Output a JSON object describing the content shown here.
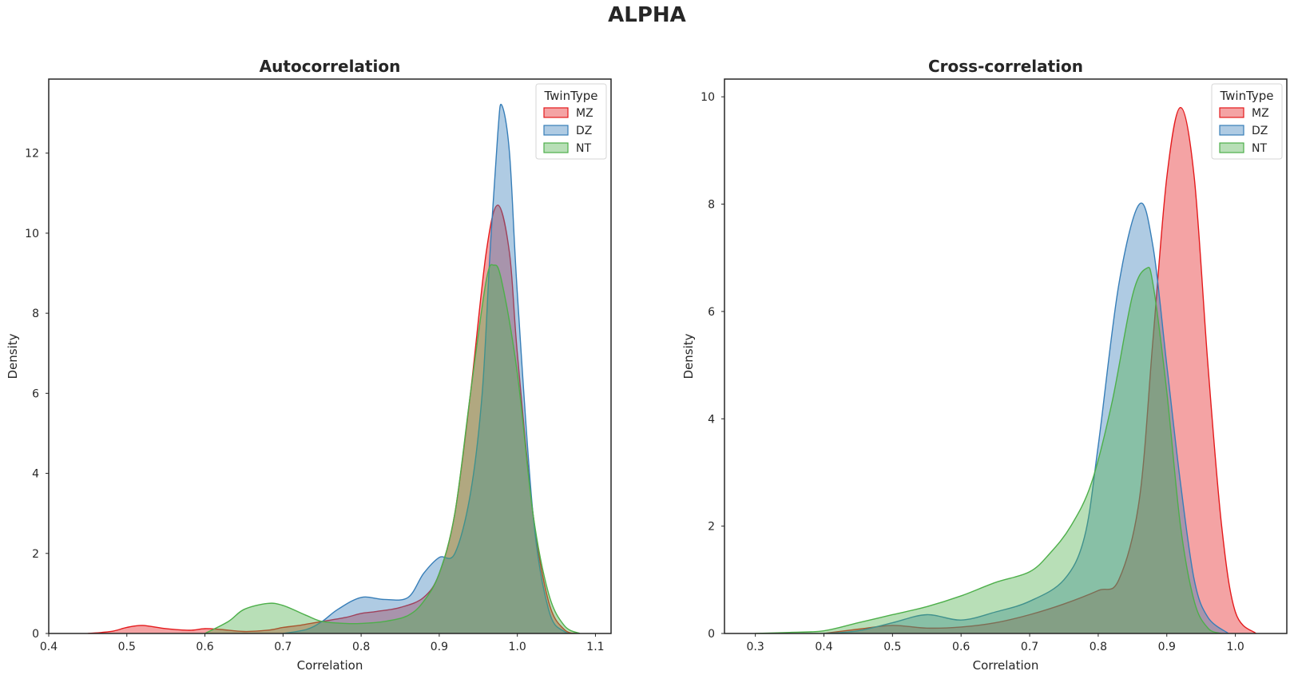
{
  "suptitle": "ALPHA",
  "colors": {
    "MZ": "#e41a1c",
    "DZ": "#377eb8",
    "NT": "#4daf4a"
  },
  "chart_data": [
    {
      "type": "area",
      "title": "Autocorrelation",
      "xlabel": "Correlation",
      "ylabel": "Density",
      "xlim": [
        0.4,
        1.12
      ],
      "ylim": [
        0,
        13.85
      ],
      "xticks": [
        0.4,
        0.5,
        0.6,
        0.7,
        0.8,
        0.9,
        1.0,
        1.1
      ],
      "xtick_labels": [
        "0.4",
        "0.5",
        "0.6",
        "0.7",
        "0.8",
        "0.9",
        "1.0",
        "1.1"
      ],
      "yticks": [
        0,
        2,
        4,
        6,
        8,
        10,
        12
      ],
      "ytick_labels": [
        "0",
        "2",
        "4",
        "6",
        "8",
        "10",
        "12"
      ],
      "grid": false,
      "legend": {
        "title": "TwinType",
        "position": "top-right",
        "entries": [
          "MZ",
          "DZ",
          "NT"
        ]
      },
      "series": [
        {
          "name": "MZ",
          "x": [
            0.45,
            0.48,
            0.5,
            0.52,
            0.55,
            0.58,
            0.6,
            0.62,
            0.65,
            0.68,
            0.7,
            0.72,
            0.75,
            0.78,
            0.8,
            0.82,
            0.85,
            0.88,
            0.9,
            0.92,
            0.94,
            0.96,
            0.975,
            0.99,
            1.0,
            1.02,
            1.04,
            1.06,
            1.08
          ],
          "y": [
            0,
            0.05,
            0.15,
            0.2,
            0.12,
            0.08,
            0.12,
            0.1,
            0.05,
            0.08,
            0.15,
            0.2,
            0.3,
            0.4,
            0.5,
            0.55,
            0.65,
            0.9,
            1.5,
            3.0,
            6.0,
            9.5,
            10.7,
            9.5,
            7.0,
            3.0,
            0.8,
            0.1,
            0
          ]
        },
        {
          "name": "DZ",
          "x": [
            0.7,
            0.73,
            0.75,
            0.77,
            0.8,
            0.83,
            0.86,
            0.88,
            0.9,
            0.92,
            0.94,
            0.955,
            0.965,
            0.975,
            0.98,
            0.99,
            1.0,
            1.02,
            1.04,
            1.06,
            1.08
          ],
          "y": [
            0,
            0.1,
            0.3,
            0.6,
            0.9,
            0.85,
            0.9,
            1.5,
            1.9,
            2.0,
            3.5,
            6.0,
            9.5,
            12.5,
            13.2,
            12.0,
            8.5,
            3.0,
            0.6,
            0.05,
            0
          ]
        },
        {
          "name": "NT",
          "x": [
            0.6,
            0.63,
            0.65,
            0.68,
            0.7,
            0.73,
            0.75,
            0.78,
            0.8,
            0.83,
            0.86,
            0.88,
            0.9,
            0.92,
            0.94,
            0.96,
            0.97,
            0.98,
            1.0,
            1.02,
            1.04,
            1.06,
            1.08
          ],
          "y": [
            0,
            0.3,
            0.6,
            0.75,
            0.7,
            0.45,
            0.3,
            0.25,
            0.25,
            0.3,
            0.45,
            0.8,
            1.5,
            3.0,
            6.0,
            8.8,
            9.2,
            8.8,
            6.5,
            3.0,
            1.0,
            0.2,
            0
          ]
        }
      ]
    },
    {
      "type": "area",
      "title": "Cross-correlation",
      "xlabel": "Correlation",
      "ylabel": "Density",
      "xlim": [
        0.255,
        1.075
      ],
      "ylim": [
        0,
        10.33
      ],
      "xticks": [
        0.3,
        0.4,
        0.5,
        0.6,
        0.7,
        0.8,
        0.9,
        1.0
      ],
      "xtick_labels": [
        "0.3",
        "0.4",
        "0.5",
        "0.6",
        "0.7",
        "0.8",
        "0.9",
        "1.0"
      ],
      "yticks": [
        0,
        2,
        4,
        6,
        8,
        10
      ],
      "ytick_labels": [
        "0",
        "2",
        "4",
        "6",
        "8",
        "10"
      ],
      "grid": false,
      "legend": {
        "title": "TwinType",
        "position": "top-right",
        "entries": [
          "MZ",
          "DZ",
          "NT"
        ]
      },
      "series": [
        {
          "name": "MZ",
          "x": [
            0.4,
            0.45,
            0.5,
            0.55,
            0.6,
            0.65,
            0.7,
            0.75,
            0.8,
            0.83,
            0.86,
            0.88,
            0.9,
            0.92,
            0.94,
            0.96,
            0.98,
            1.0,
            1.03
          ],
          "y": [
            0,
            0.08,
            0.15,
            0.1,
            0.12,
            0.2,
            0.35,
            0.55,
            0.8,
            1.0,
            2.5,
            5.5,
            8.5,
            9.8,
            8.5,
            5.0,
            2.0,
            0.4,
            0
          ]
        },
        {
          "name": "DZ",
          "x": [
            0.4,
            0.45,
            0.5,
            0.55,
            0.6,
            0.65,
            0.7,
            0.75,
            0.78,
            0.8,
            0.83,
            0.86,
            0.88,
            0.9,
            0.92,
            0.94,
            0.96,
            0.99
          ],
          "y": [
            0,
            0.05,
            0.2,
            0.35,
            0.25,
            0.4,
            0.6,
            1.0,
            1.8,
            3.5,
            6.5,
            8.0,
            7.2,
            5.0,
            2.8,
            1.0,
            0.3,
            0
          ]
        },
        {
          "name": "NT",
          "x": [
            0.3,
            0.35,
            0.4,
            0.45,
            0.5,
            0.55,
            0.6,
            0.65,
            0.7,
            0.73,
            0.76,
            0.79,
            0.82,
            0.85,
            0.87,
            0.88,
            0.9,
            0.92,
            0.94,
            0.96,
            0.98
          ],
          "y": [
            0,
            0.02,
            0.05,
            0.2,
            0.35,
            0.5,
            0.7,
            0.95,
            1.15,
            1.5,
            2.0,
            2.8,
            4.3,
            6.3,
            6.8,
            6.5,
            4.5,
            2.0,
            0.6,
            0.1,
            0
          ]
        }
      ]
    }
  ]
}
